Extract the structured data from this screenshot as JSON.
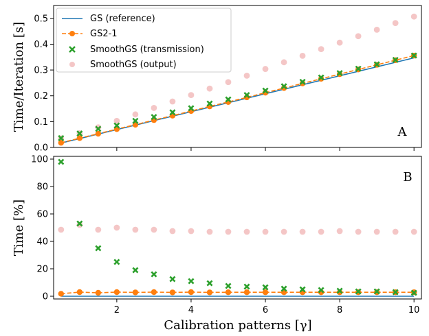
{
  "chart_data": [
    {
      "type": "line",
      "panel_label": "A",
      "ylabel": "Time/Iteration [s]",
      "xlim": [
        0.3,
        10.2
      ],
      "ylim": [
        0.0,
        0.55
      ],
      "xticks": [
        2,
        4,
        6,
        8,
        10
      ],
      "yticks": [
        0.0,
        0.1,
        0.2,
        0.3,
        0.4,
        0.5
      ],
      "ytick_labels": [
        "0.0",
        "0.1",
        "0.2",
        "0.3",
        "0.4",
        "0.5"
      ],
      "legend_position": "top-left",
      "series": [
        {
          "name": "GS (reference)",
          "style": "line",
          "color": "#1f77b4",
          "x": [
            0.5,
            10
          ],
          "y": [
            0.017,
            0.347
          ]
        },
        {
          "name": "GS2-1",
          "style": "dashed-line-circle",
          "color": "#ff7f0e",
          "x": [
            0.5,
            1.0,
            1.5,
            2.0,
            2.5,
            3.0,
            3.5,
            4.0,
            4.5,
            5.0,
            5.5,
            6.0,
            6.5,
            7.0,
            7.5,
            8.0,
            8.5,
            9.0,
            9.5,
            10.0
          ],
          "y": [
            0.018,
            0.036,
            0.053,
            0.071,
            0.088,
            0.106,
            0.123,
            0.141,
            0.159,
            0.176,
            0.194,
            0.212,
            0.23,
            0.248,
            0.266,
            0.284,
            0.302,
            0.32,
            0.338,
            0.356
          ]
        },
        {
          "name": "SmoothGS (transmission)",
          "style": "x-marker",
          "color": "#2ca02c",
          "x": [
            0.5,
            1.0,
            1.5,
            2.0,
            2.5,
            3.0,
            3.5,
            4.0,
            4.5,
            5.0,
            5.5,
            6.0,
            6.5,
            7.0,
            7.5,
            8.0,
            8.5,
            9.0,
            9.5,
            10.0
          ],
          "y": [
            0.036,
            0.054,
            0.072,
            0.085,
            0.103,
            0.118,
            0.136,
            0.152,
            0.17,
            0.186,
            0.203,
            0.22,
            0.237,
            0.254,
            0.271,
            0.288,
            0.305,
            0.322,
            0.339,
            0.356
          ]
        },
        {
          "name": "SmoothGS (output)",
          "style": "faint-circle",
          "color": "#f4c6c6",
          "x": [
            0.5,
            1.0,
            1.5,
            2.0,
            2.5,
            3.0,
            3.5,
            4.0,
            4.5,
            5.0,
            5.5,
            6.0,
            6.5,
            7.0,
            7.5,
            8.0,
            8.5,
            9.0,
            9.5,
            10.0
          ],
          "y": [
            0.035,
            0.055,
            0.078,
            0.103,
            0.128,
            0.153,
            0.178,
            0.203,
            0.228,
            0.253,
            0.278,
            0.304,
            0.33,
            0.355,
            0.381,
            0.406,
            0.431,
            0.456,
            0.482,
            0.507
          ]
        }
      ]
    },
    {
      "type": "line",
      "panel_label": "B",
      "ylabel": "Time [%]",
      "xlabel": "Calibration patterns [γ]",
      "xlim": [
        0.3,
        10.2
      ],
      "ylim": [
        -2,
        102
      ],
      "xticks": [
        2,
        4,
        6,
        8,
        10
      ],
      "xtick_labels": [
        "2",
        "4",
        "6",
        "8",
        "10"
      ],
      "yticks": [
        0,
        20,
        40,
        60,
        80,
        100
      ],
      "ytick_labels": [
        "0",
        "20",
        "40",
        "60",
        "80",
        "100"
      ],
      "series": [
        {
          "name": "GS (reference)",
          "style": "line",
          "color": "#1f77b4",
          "x": [
            0.5,
            10
          ],
          "y": [
            0,
            0
          ]
        },
        {
          "name": "GS2-1",
          "style": "dashed-line-circle",
          "color": "#ff7f0e",
          "x": [
            0.5,
            1.0,
            1.5,
            2.0,
            2.5,
            3.0,
            3.5,
            4.0,
            4.5,
            5.0,
            5.5,
            6.0,
            6.5,
            7.0,
            7.5,
            8.0,
            8.5,
            9.0,
            9.5,
            10.0
          ],
          "y": [
            1.8,
            3.0,
            2.5,
            3.0,
            2.8,
            3.0,
            2.8,
            3.0,
            2.8,
            2.9,
            2.9,
            2.9,
            2.9,
            2.9,
            2.9,
            2.9,
            2.9,
            2.9,
            2.9,
            2.9
          ]
        },
        {
          "name": "SmoothGS (transmission)",
          "style": "x-marker",
          "color": "#2ca02c",
          "x": [
            0.5,
            1.0,
            1.5,
            2.0,
            2.5,
            3.0,
            3.5,
            4.0,
            4.5,
            5.0,
            5.5,
            6.0,
            6.5,
            7.0,
            7.5,
            8.0,
            8.5,
            9.0,
            9.5,
            10.0
          ],
          "y": [
            98,
            53,
            35,
            25,
            19,
            16,
            12.5,
            11,
            9.5,
            7.5,
            7,
            6.5,
            5.5,
            5,
            4.5,
            4,
            3.5,
            3.5,
            3.0,
            2.5
          ]
        },
        {
          "name": "SmoothGS (output)",
          "style": "faint-circle",
          "color": "#f4c6c6",
          "x": [
            0.5,
            1.0,
            1.5,
            2.0,
            2.5,
            3.0,
            3.5,
            4.0,
            4.5,
            5.0,
            5.5,
            6.0,
            6.5,
            7.0,
            7.5,
            8.0,
            8.5,
            9.0,
            9.5,
            10.0
          ],
          "y": [
            48.5,
            52,
            48.5,
            50,
            48.5,
            48.5,
            47.5,
            47.5,
            47,
            47,
            47,
            47,
            47,
            47,
            47,
            47.5,
            47,
            47,
            47,
            47
          ]
        }
      ]
    }
  ]
}
